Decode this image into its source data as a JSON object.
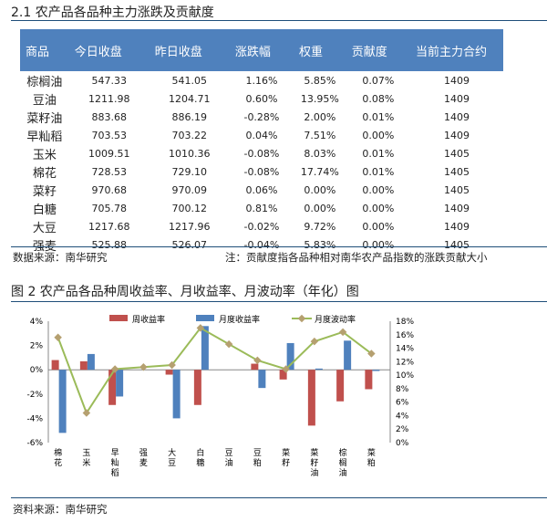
{
  "section_title": "2.1 农产品各品种主力涨跌及贡献度",
  "table": {
    "headers": [
      "商品",
      "今日收盘",
      "昨日收盘",
      "涨跌幅",
      "权重",
      "贡献度",
      "当前主力合约"
    ],
    "rows": [
      [
        "棕榈油",
        "547.33",
        "541.05",
        "1.16%",
        "5.85%",
        "0.07%",
        "1409"
      ],
      [
        "豆油",
        "1211.98",
        "1204.71",
        "0.60%",
        "13.95%",
        "0.08%",
        "1409"
      ],
      [
        "菜籽油",
        "883.68",
        "886.19",
        "-0.28%",
        "2.00%",
        "0.01%",
        "1409"
      ],
      [
        "早籼稻",
        "703.53",
        "703.22",
        "0.04%",
        "7.51%",
        "0.00%",
        "1409"
      ],
      [
        "玉米",
        "1009.51",
        "1010.36",
        "-0.08%",
        "8.03%",
        "0.01%",
        "1405"
      ],
      [
        "棉花",
        "728.53",
        "729.10",
        "-0.08%",
        "17.74%",
        "0.01%",
        "1405"
      ],
      [
        "菜籽",
        "970.68",
        "970.09",
        "0.06%",
        "0.00%",
        "0.00%",
        "1405"
      ],
      [
        "白糖",
        "705.78",
        "700.12",
        "0.81%",
        "0.00%",
        "0.00%",
        "1409"
      ],
      [
        "大豆",
        "1217.68",
        "1217.96",
        "-0.02%",
        "9.72%",
        "0.00%",
        "1409"
      ],
      [
        "强麦",
        "525.88",
        "526.07",
        "-0.04%",
        "5.83%",
        "0.00%",
        "1405"
      ]
    ]
  },
  "table_source": "数据来源：南华研究",
  "table_note": "注：贡献度指各品种相对南华农产品指数的涨跌贡献大小",
  "figure_title": "图 2 农产品各品种周收益率、月收益率、月波动率（年化）图",
  "figure_source": "资料来源：南华研究",
  "chart_data": {
    "type": "bar",
    "categories": [
      "棉花",
      "玉米",
      "早籼稻",
      "强麦",
      "大豆",
      "白糖",
      "豆油",
      "豆粕",
      "菜籽",
      "菜籽油",
      "棕榈油",
      "菜粕"
    ],
    "series": [
      {
        "name": "周收益率",
        "type": "bar",
        "axis": "left",
        "color": "#c0504d",
        "values": [
          0.8,
          0.7,
          -2.9,
          0,
          -0.4,
          -2.9,
          0,
          0.5,
          -0.8,
          -4.6,
          -2.6,
          -1.6
        ]
      },
      {
        "name": "月度收益率",
        "type": "bar",
        "axis": "left",
        "color": "#4f81bd",
        "values": [
          -5.2,
          1.3,
          -2.2,
          0,
          -4.0,
          3.6,
          0,
          -1.5,
          2.2,
          0.1,
          2.4,
          -0.1
        ]
      },
      {
        "name": "月度波动率",
        "type": "line",
        "axis": "right",
        "color": "#9bbb59",
        "values": [
          15.6,
          4.4,
          10.9,
          11.2,
          11.5,
          17.0,
          14.6,
          12.2,
          10.9,
          15.0,
          16.4,
          13.2
        ]
      }
    ],
    "ylim_left": [
      -6,
      4
    ],
    "yticks_left": [
      "-6%",
      "-4%",
      "-2%",
      "0%",
      "2%",
      "4%"
    ],
    "ylim_right": [
      0,
      18
    ],
    "yticks_right": [
      "0%",
      "2%",
      "4%",
      "6%",
      "8%",
      "10%",
      "12%",
      "14%",
      "16%",
      "18%"
    ],
    "legend": "top"
  }
}
